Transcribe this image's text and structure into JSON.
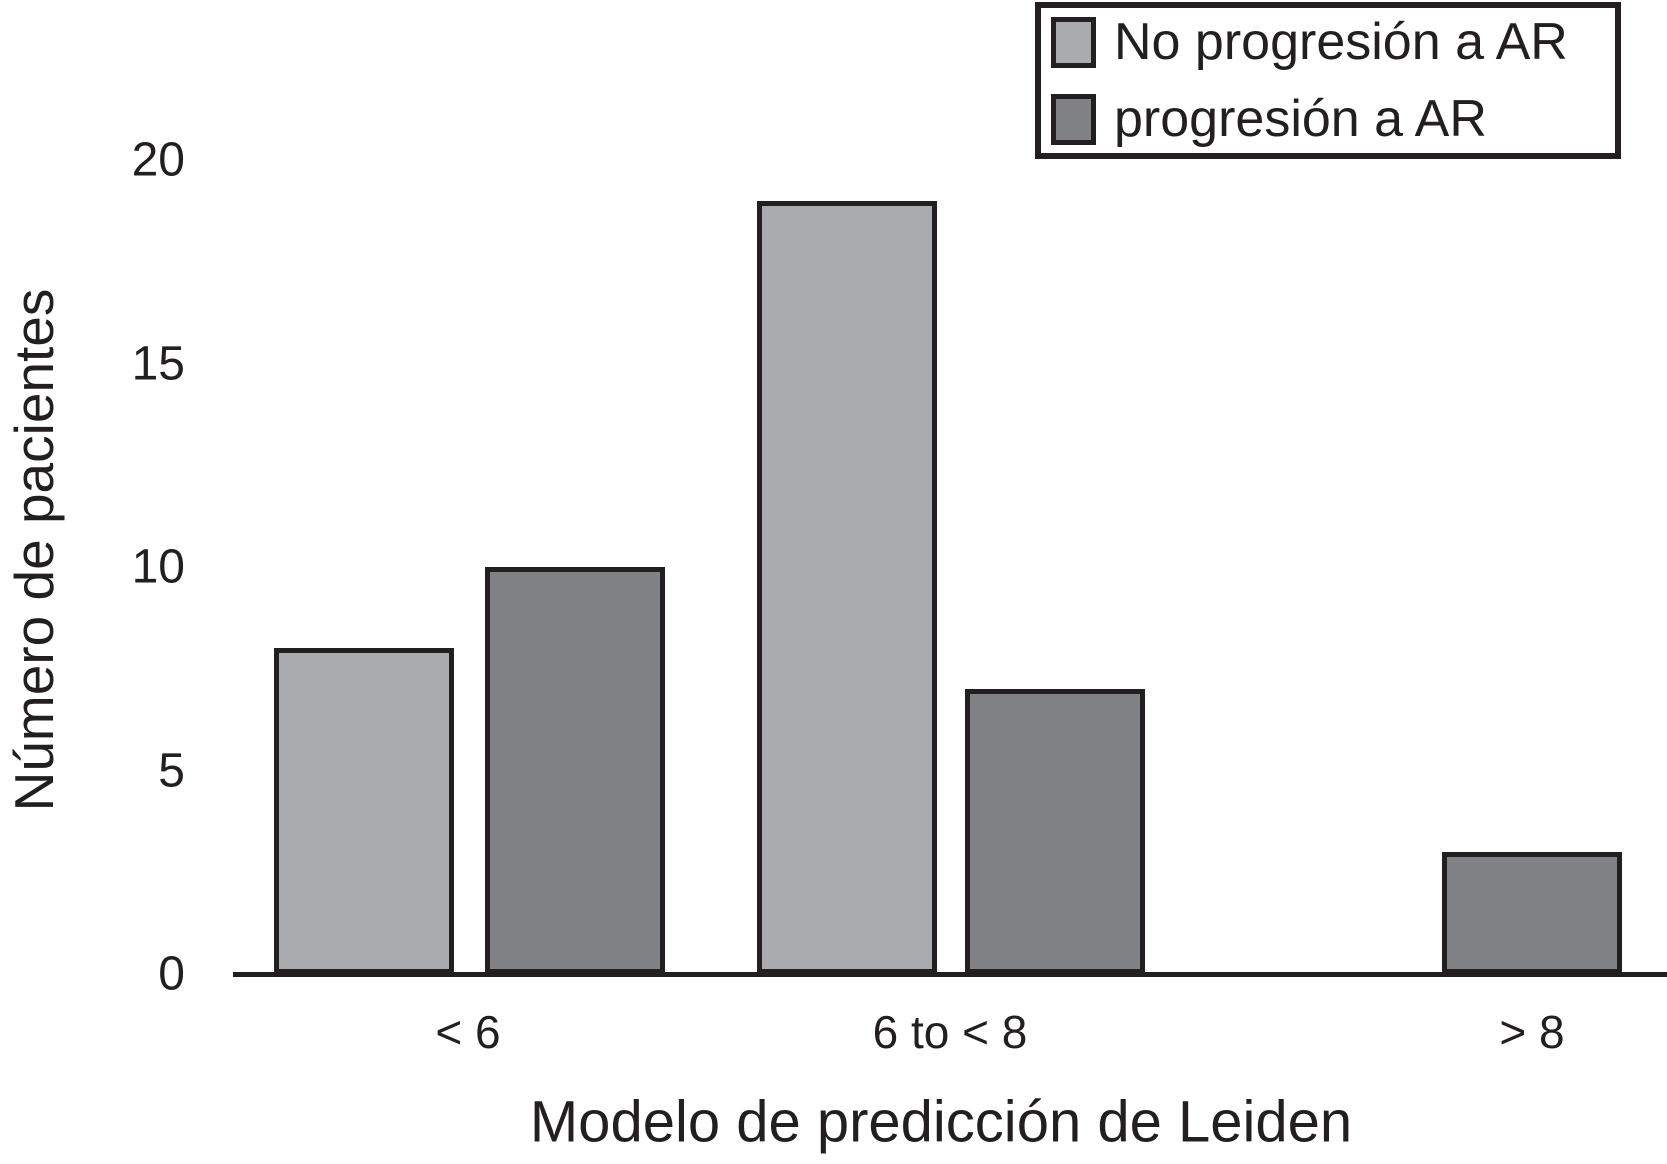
{
  "chart_data": {
    "type": "bar",
    "title": "",
    "xlabel": "Modelo de predicción de Leiden",
    "ylabel": "Número de pacientes",
    "categories": [
      "< 6",
      "6 to < 8",
      "> 8"
    ],
    "series": [
      {
        "name": "No progresión a AR",
        "color": "#a9abae",
        "values": [
          8,
          19,
          null
        ]
      },
      {
        "name": "progresión a AR",
        "color": "#808285",
        "values": [
          10,
          7,
          3
        ]
      }
    ],
    "ylim": [
      0,
      20
    ],
    "yticks": [
      0,
      5,
      10,
      15,
      20
    ],
    "grid": false,
    "legend_position": "top-right",
    "bar_border_color": "#231f20",
    "axis_color": "#231f20",
    "text_color": "#231f20",
    "background": "#ffffff"
  }
}
